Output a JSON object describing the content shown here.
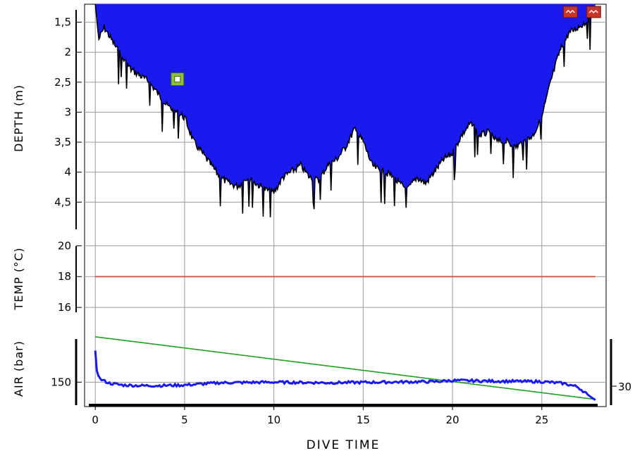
{
  "colors": {
    "depth_fill": "#1a1aee",
    "depth_edge": "#000000",
    "temperature": "#d06050",
    "air": "#1a1aee",
    "air_reference": "#22a022",
    "marker_bookmark": "#8fbf3f",
    "marker_alert": "#c8362a",
    "grid": "#9a9a9a"
  },
  "chart_data": [
    {
      "panel": "depth",
      "type": "area",
      "ylabel": "DEPTH (m)",
      "y_inverted": true,
      "ylim": [
        1.2,
        5.0
      ],
      "y_ticks": [
        "1,5",
        "2",
        "2,5",
        "3",
        "3,5",
        "4",
        "4,5"
      ],
      "y_tick_values": [
        1.5,
        2,
        2.5,
        3,
        3.5,
        4,
        4.5
      ],
      "x": [
        0,
        0.2,
        0.5,
        1,
        1.5,
        2,
        2.5,
        3,
        3.5,
        4,
        4.5,
        5,
        5.5,
        6,
        6.5,
        7,
        7.5,
        8,
        8.5,
        9,
        9.5,
        10,
        10.5,
        11,
        11.5,
        12,
        12.5,
        13,
        13.5,
        14,
        14.5,
        15,
        15.5,
        16,
        16.5,
        17,
        17.5,
        18,
        18.5,
        19,
        19.5,
        20,
        20.5,
        21,
        21.5,
        22,
        22.5,
        23,
        23.5,
        24,
        24.5,
        25,
        25.5,
        26,
        26.5,
        27,
        27.5,
        28
      ],
      "values": [
        1.2,
        1.8,
        1.6,
        1.85,
        2.1,
        2.3,
        2.4,
        2.5,
        2.7,
        2.9,
        3.0,
        3.1,
        3.5,
        3.7,
        3.9,
        4.1,
        4.2,
        4.25,
        4.1,
        4.2,
        4.3,
        4.35,
        4.1,
        4.0,
        3.9,
        4.1,
        4.15,
        3.9,
        3.8,
        3.6,
        3.3,
        3.5,
        3.9,
        4.0,
        4.05,
        4.2,
        4.3,
        4.1,
        4.2,
        4.0,
        3.8,
        3.7,
        3.4,
        3.2,
        3.4,
        3.35,
        3.5,
        3.5,
        3.6,
        3.5,
        3.4,
        3.1,
        2.5,
        2.0,
        1.7,
        1.6,
        1.5,
        1.3
      ],
      "markers": [
        {
          "type": "bookmark",
          "x": 4.6,
          "y": 2.45
        },
        {
          "type": "alert",
          "x": 26.6,
          "y": 1.2
        },
        {
          "type": "alert",
          "x": 27.9,
          "y": 1.2
        }
      ]
    },
    {
      "panel": "temperature",
      "type": "line",
      "ylabel": "TEMP (°C)",
      "ylim": [
        15.5,
        20.2
      ],
      "y_ticks": [
        "20",
        "18",
        "16"
      ],
      "y_tick_values": [
        20,
        18,
        16
      ],
      "x": [
        0,
        28
      ],
      "values": [
        18,
        18
      ]
    },
    {
      "panel": "air",
      "type": "line",
      "ylabel": "AIR (bar)",
      "ylim": [
        146,
        158
      ],
      "y_ticks": [
        "150"
      ],
      "y_tick_values": [
        150
      ],
      "right_ticks": [
        "30"
      ],
      "series": [
        {
          "key": "air_pressure",
          "x": [
            0,
            0.1,
            0.3,
            0.8,
            1.5,
            2.5,
            3.5,
            5,
            7,
            10,
            13,
            16,
            19,
            20,
            22,
            25,
            26.2,
            27,
            27.8,
            28
          ],
          "values": [
            155.5,
            151.5,
            150.5,
            149.8,
            149.5,
            149.4,
            149.4,
            149.5,
            149.9,
            150.0,
            149.9,
            150.0,
            150.1,
            150.3,
            150.2,
            150.1,
            149.8,
            149.2,
            147.3,
            146.9
          ]
        },
        {
          "key": "reference",
          "x": [
            0,
            28
          ],
          "values": [
            157.9,
            147.0
          ]
        }
      ]
    }
  ],
  "x_axis": {
    "title": "DIVE TIME",
    "xlim": [
      -0.6,
      28.6
    ],
    "ticks": [
      "0",
      "5",
      "10",
      "15",
      "20",
      "25"
    ],
    "tick_values": [
      0,
      5,
      10,
      15,
      20,
      25
    ]
  }
}
